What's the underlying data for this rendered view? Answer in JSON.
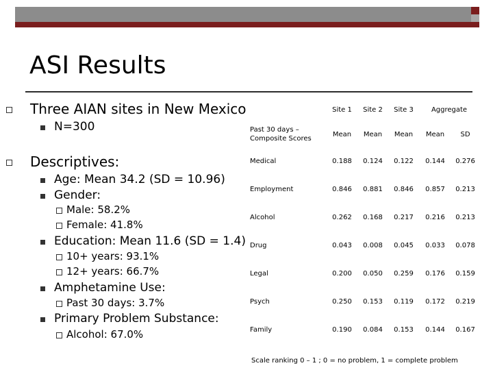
{
  "title": "ASI Results",
  "colors": {
    "band_gray": "#8c8c8c",
    "band_red": "#7a1e1e",
    "text": "#000000"
  },
  "bullets": {
    "sites": "Three AIAN sites in New Mexico",
    "n": "N=300",
    "descriptives": "Descriptives:",
    "age": "Age:  Mean 34.2 (SD = 10.96)",
    "gender": "Gender:",
    "male": "Male: 58.2%",
    "female": "Female: 41.8%",
    "education": "Education: Mean 11.6 (SD = 1.4)",
    "ten_plus": "10+ years: 93.1%",
    "twelve_plus": "12+ years: 66.7%",
    "amphetamine": "Amphetamine Use:",
    "past30": "Past 30 days: 3.7%",
    "primary": "Primary Problem Substance:",
    "alcohol": "Alcohol: 67.0%"
  },
  "table": {
    "site_headers": [
      "Site 1",
      "Site 2",
      "Site 3"
    ],
    "aggregate_header": "Aggregate",
    "sub_label": "Past 30 days – Composite Scores",
    "sub_headers": [
      "Mean",
      "Mean",
      "Mean",
      "Mean",
      "SD"
    ],
    "rows": [
      {
        "label": "Medical",
        "values": [
          "0.188",
          "0.124",
          "0.122",
          "0.144",
          "0.276"
        ]
      },
      {
        "label": "Employment",
        "values": [
          "0.846",
          "0.881",
          "0.846",
          "0.857",
          "0.213"
        ]
      },
      {
        "label": "Alcohol",
        "values": [
          "0.262",
          "0.168",
          "0.217",
          "0.216",
          "0.213"
        ]
      },
      {
        "label": "Drug",
        "values": [
          "0.043",
          "0.008",
          "0.045",
          "0.033",
          "0.078"
        ]
      },
      {
        "label": "Legal",
        "values": [
          "0.200",
          "0.050",
          "0.259",
          "0.176",
          "0.159"
        ]
      },
      {
        "label": "Psych",
        "values": [
          "0.250",
          "0.153",
          "0.119",
          "0.172",
          "0.219"
        ]
      },
      {
        "label": "Family",
        "values": [
          "0.190",
          "0.084",
          "0.153",
          "0.144",
          "0.167"
        ]
      }
    ],
    "note": "Scale ranking 0 – 1 ; 0 = no problem, 1 = complete problem"
  }
}
